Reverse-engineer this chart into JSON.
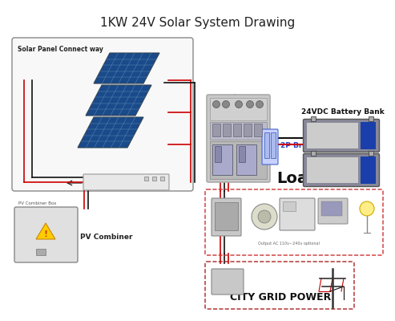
{
  "title": "1KW 24V Solar System Drawing",
  "title_fontsize": 11,
  "bg_color": "#ffffff",
  "labels": {
    "solar_panel_way": "Solar Panel Connect way",
    "pv_combiner": "PV Combiner",
    "battery_bank": "24VDC Battery Bank",
    "breaker": "2P Breaker",
    "load": "Load",
    "city_grid": "CITY GRID POWER",
    "output_ac": "Output AC 110v~240v optional"
  },
  "colors": {
    "red_wire": "#cc0000",
    "black_wire": "#111111",
    "blue_breaker": "#4466cc",
    "solar_panel": "#1a4a8a",
    "solar_grid": "#5588bb",
    "panel_border": "#334455",
    "battery_body": "#7a7a8a",
    "battery_blue": "#1a3faa",
    "battery_dark": "#333355",
    "inverter_body": "#c8c8c8",
    "inverter_top": "#b8b8b8",
    "pv_combiner_bg": "#e0e0e0",
    "pv_small_bg": "#e8e8e8",
    "dashed_red": "#cc3333",
    "load_text": "#111111",
    "grid_text": "#111111"
  }
}
